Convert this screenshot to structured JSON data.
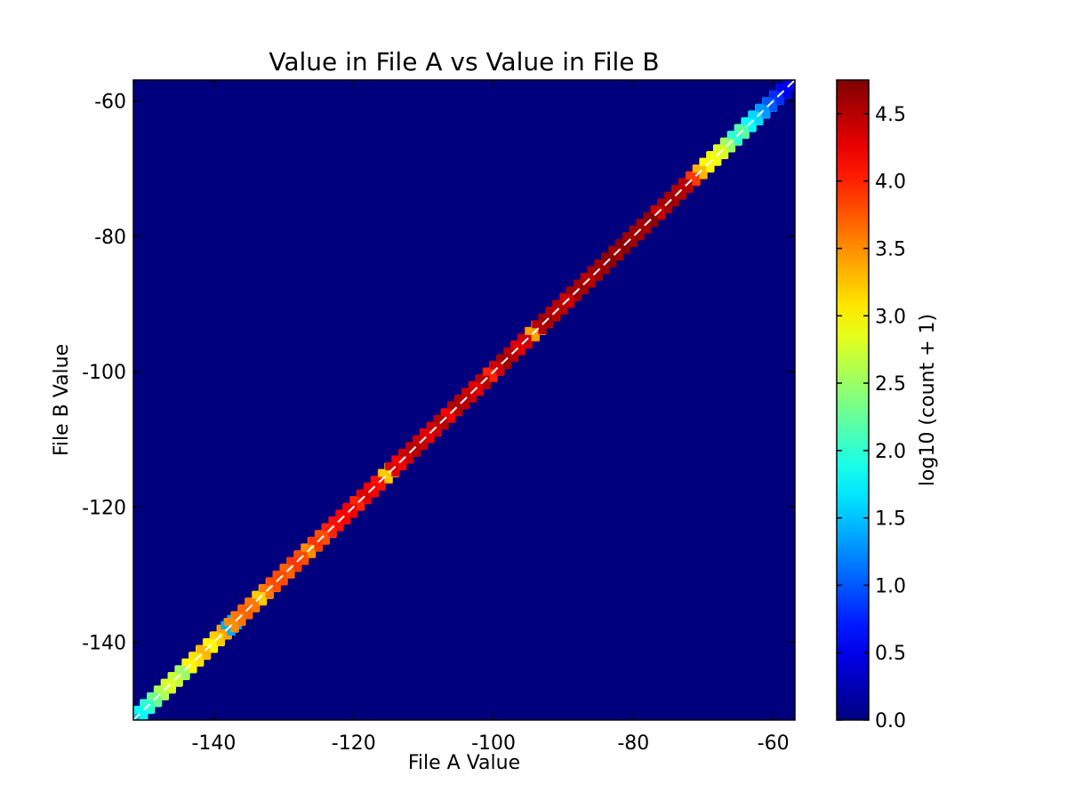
{
  "chart_data": {
    "type": "heatmap",
    "title": "Value in File A vs Value in File B",
    "xlabel": "File A Value",
    "ylabel": "File B Value",
    "xlim": [
      -151.5,
      -56.9
    ],
    "ylim": [
      -151.5,
      -56.9
    ],
    "xticks": [
      -140,
      -120,
      -100,
      -80,
      -60
    ],
    "yticks": [
      -60,
      -80,
      -100,
      -120,
      -140
    ],
    "grid": false,
    "background_color": "#00007f",
    "identity_line_color": "#ffffff",
    "colorbar": {
      "label": "log10 (count + 1)",
      "range": [
        0.0,
        4.75
      ],
      "ticks": [
        "0.0",
        "0.5",
        "1.0",
        "1.5",
        "2.0",
        "2.5",
        "3.0",
        "3.5",
        "4.0",
        "4.5"
      ],
      "colormap": "jet"
    },
    "cells": [
      [
        -151,
        1.5
      ],
      [
        -150,
        1.8
      ],
      [
        -149,
        2.0
      ],
      [
        -148,
        2.3
      ],
      [
        -147,
        2.6
      ],
      [
        -146,
        2.8
      ],
      [
        -145,
        2.7
      ],
      [
        -144,
        2.5
      ],
      [
        -143,
        3.0
      ],
      [
        -142,
        3.1
      ],
      [
        -141,
        3.3
      ],
      [
        -140,
        3.0
      ],
      [
        -139,
        3.2
      ],
      [
        -138,
        3.4
      ],
      [
        -137.5,
        1.4
      ],
      [
        -137,
        3.5
      ],
      [
        -136,
        3.6
      ],
      [
        -135,
        3.7
      ],
      [
        -134,
        3.6
      ],
      [
        -133,
        3.2
      ],
      [
        -132,
        3.6
      ],
      [
        -131,
        3.8
      ],
      [
        -130,
        3.8
      ],
      [
        -129,
        3.7
      ],
      [
        -128,
        3.9
      ],
      [
        -127,
        3.8
      ],
      [
        -126,
        3.5
      ],
      [
        -125,
        3.9
      ],
      [
        -124,
        3.8
      ],
      [
        -123,
        4.0
      ],
      [
        -122,
        4.1
      ],
      [
        -121,
        4.2
      ],
      [
        -120,
        4.2
      ],
      [
        -119,
        4.0
      ],
      [
        -118,
        4.3
      ],
      [
        -117,
        4.2
      ],
      [
        -116,
        4.1
      ],
      [
        -115,
        3.2
      ],
      [
        -114,
        4.3
      ],
      [
        -113,
        4.2
      ],
      [
        -112,
        4.4
      ],
      [
        -111,
        4.5
      ],
      [
        -110,
        4.4
      ],
      [
        -109,
        4.3
      ],
      [
        -108,
        4.4
      ],
      [
        -107,
        4.5
      ],
      [
        -106,
        4.2
      ],
      [
        -105,
        4.5
      ],
      [
        -104,
        4.5
      ],
      [
        -103,
        4.4
      ],
      [
        -102,
        4.3
      ],
      [
        -101,
        4.5
      ],
      [
        -100,
        4.0
      ],
      [
        -99,
        4.4
      ],
      [
        -98,
        4.6
      ],
      [
        -97,
        4.5
      ],
      [
        -96,
        4.3
      ],
      [
        -95,
        4.4
      ],
      [
        -94,
        3.4
      ],
      [
        -93,
        4.5
      ],
      [
        -92,
        4.6
      ],
      [
        -91,
        4.5
      ],
      [
        -90,
        4.5
      ],
      [
        -89,
        4.4
      ],
      [
        -88,
        4.6
      ],
      [
        -87,
        4.6
      ],
      [
        -86,
        4.5
      ],
      [
        -85,
        4.6
      ],
      [
        -84,
        4.6
      ],
      [
        -83,
        4.7
      ],
      [
        -82,
        4.6
      ],
      [
        -81,
        4.7
      ],
      [
        -80,
        4.6
      ],
      [
        -79,
        4.6
      ],
      [
        -78,
        4.6
      ],
      [
        -77,
        4.7
      ],
      [
        -76,
        4.4
      ],
      [
        -75,
        4.6
      ],
      [
        -74,
        4.6
      ],
      [
        -73,
        4.5
      ],
      [
        -72,
        4.5
      ],
      [
        -71,
        3.9
      ],
      [
        -70,
        3.3
      ],
      [
        -69,
        3.0
      ],
      [
        -68,
        2.9
      ],
      [
        -67,
        2.8
      ],
      [
        -66,
        2.5
      ],
      [
        -65,
        2.0
      ],
      [
        -64,
        2.2
      ],
      [
        -63,
        1.8
      ],
      [
        -62,
        1.6
      ],
      [
        -61,
        1.3
      ],
      [
        -60,
        1.0
      ],
      [
        -59,
        0.8
      ],
      [
        -58,
        0.5
      ]
    ]
  }
}
